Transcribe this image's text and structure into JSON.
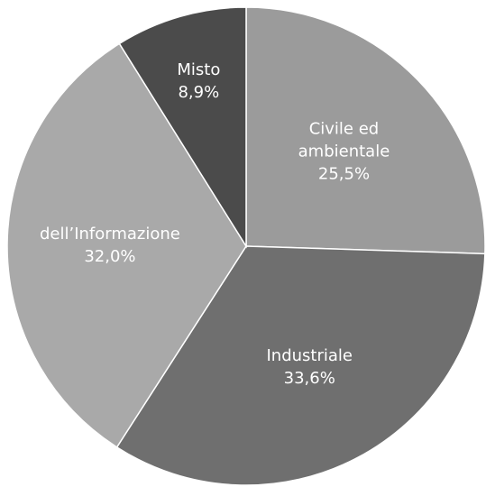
{
  "chart_data": {
    "type": "pie",
    "categories": [
      "Civile ed ambientale",
      "Industriale",
      "dell’Informazione",
      "Misto"
    ],
    "values": [
      25.5,
      33.6,
      32.0,
      8.9
    ],
    "value_labels": [
      "25,5%",
      "33,6%",
      "32,0%",
      "8,9%"
    ],
    "colors": [
      "#9b9b9b",
      "#6f6f6f",
      "#a9a9a9",
      "#4b4b4b"
    ]
  }
}
